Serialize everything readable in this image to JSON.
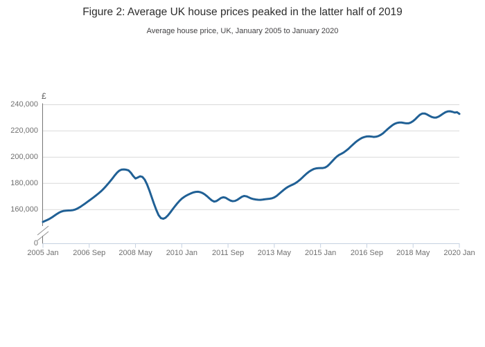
{
  "figure": {
    "title": "Figure 2: Average UK house prices peaked in the latter half of 2019",
    "subtitle": "Average house price, UK, January 2005 to January 2020"
  },
  "chart_data": {
    "type": "line",
    "title": "Figure 2: Average UK house prices peaked in the latter half of 2019",
    "subtitle": "Average house price, UK, January 2005 to January 2020",
    "unit_label": "£",
    "x": {
      "start": "2005 Jan",
      "end": "2020 Jan",
      "frequency": "monthly",
      "tick_labels": [
        "2005 Jan",
        "2006 Sep",
        "2008 May",
        "2010 Jan",
        "2011 Sep",
        "2013 May",
        "2015 Jan",
        "2016 Sep",
        "2018 May",
        "2020 Jan"
      ],
      "tick_month_indices": [
        0,
        20,
        40,
        60,
        80,
        100,
        120,
        140,
        160,
        180
      ]
    },
    "y": {
      "tick_values": [
        240000,
        220000,
        200000,
        180000,
        160000
      ],
      "tick_labels": [
        "240,000",
        "220,000",
        "200,000",
        "180,000",
        "160,000"
      ],
      "zero_label": "0",
      "axis_break": true,
      "visible_range": [
        160000,
        240000
      ]
    },
    "grid": "horizontal-only",
    "legend": "none",
    "series": [
      {
        "name": "Average house price (£)",
        "values": [
          150600,
          151400,
          152200,
          153100,
          154200,
          155400,
          156600,
          157700,
          158500,
          159000,
          159200,
          159300,
          159400,
          159600,
          160100,
          160900,
          161900,
          163100,
          164300,
          165600,
          166900,
          168200,
          169500,
          170900,
          172300,
          173800,
          175500,
          177400,
          179400,
          181500,
          183700,
          186000,
          188100,
          189700,
          190500,
          190600,
          190400,
          189900,
          188100,
          185600,
          183700,
          184500,
          185400,
          184900,
          182800,
          179200,
          174600,
          169500,
          164400,
          159700,
          155700,
          153500,
          153000,
          153800,
          155500,
          157700,
          160100,
          162400,
          164600,
          166600,
          168300,
          169600,
          170700,
          171600,
          172400,
          173100,
          173500,
          173600,
          173300,
          172600,
          171500,
          170100,
          168500,
          167000,
          166100,
          166500,
          167700,
          168900,
          169400,
          169000,
          167900,
          166900,
          166400,
          166600,
          167400,
          168600,
          169800,
          170400,
          170100,
          169300,
          168500,
          168000,
          167700,
          167500,
          167400,
          167600,
          167900,
          168100,
          168300,
          168600,
          169300,
          170400,
          171900,
          173400,
          174900,
          176300,
          177400,
          178300,
          179100,
          180000,
          181200,
          182600,
          184200,
          185900,
          187500,
          188900,
          190000,
          190900,
          191400,
          191600,
          191700,
          191700,
          192100,
          193200,
          194900,
          196800,
          198700,
          200400,
          201700,
          202600,
          203600,
          204900,
          206300,
          208000,
          209600,
          211200,
          212600,
          213800,
          214800,
          215400,
          215800,
          215900,
          215700,
          215400,
          215600,
          216100,
          217000,
          218200,
          219800,
          221400,
          222900,
          224300,
          225400,
          226100,
          226400,
          226400,
          226100,
          225800,
          225800,
          226400,
          227500,
          229000,
          230800,
          232400,
          233300,
          233300,
          232600,
          231600,
          230700,
          230200,
          230200,
          230900,
          232000,
          233200,
          234300,
          234900,
          235000,
          234600,
          234000,
          234300,
          233000
        ]
      }
    ],
    "colors": {
      "line": "#206095",
      "grid": "#d9d9d9",
      "y_axis": "#757575",
      "x_axis": "#c5d1e1",
      "break_mark": "#8f8f8f",
      "title_text": "#2b2b2b",
      "subtitle_text": "#414042",
      "tick_text": "#6f6f6f"
    }
  }
}
